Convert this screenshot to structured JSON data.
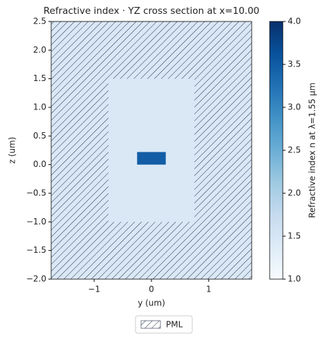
{
  "chart_data": {
    "type": "heatmap",
    "title": "Refractive index · YZ cross section at x=10.00",
    "xlabel": "y (um)",
    "ylabel": "z (um)",
    "xlim": [
      -1.75,
      1.75
    ],
    "ylim": [
      -2.0,
      2.5
    ],
    "xticks": [
      {
        "value": -1,
        "label": "−1"
      },
      0,
      1
    ],
    "yticks": [
      {
        "value": -2.0,
        "label": "−2.0"
      },
      {
        "value": -1.5,
        "label": "−1.5"
      },
      {
        "value": -1.0,
        "label": "−1.0"
      },
      {
        "value": -0.5,
        "label": "−0.5"
      },
      {
        "value": 0.0,
        "label": "0.0"
      },
      {
        "value": 0.5,
        "label": "0.5"
      },
      {
        "value": 1.0,
        "label": "1.0"
      },
      {
        "value": 1.5,
        "label": "1.5"
      },
      {
        "value": 2.0,
        "label": "2.0"
      },
      {
        "value": 2.5,
        "label": "2.5"
      }
    ],
    "background_value": 1.44,
    "rectangles": [
      {
        "x": [
          -0.75,
          0.75
        ],
        "y": [
          -1.0,
          1.5
        ],
        "value": 1.44
      },
      {
        "x": [
          -0.25,
          0.25
        ],
        "y": [
          0.0,
          0.22
        ],
        "value": 3.48
      }
    ],
    "pml_hatch": true,
    "legend": {
      "labels": [
        "PML"
      ],
      "loc": "lower center"
    },
    "colormap": "Blues",
    "colorbar": {
      "label": "Refractive index n at λ=1.55 μm",
      "lim": [
        1.0,
        4.0
      ],
      "ticks": [
        {
          "value": 1.0,
          "label": "1.0"
        },
        {
          "value": 1.5,
          "label": "1.5"
        },
        {
          "value": 2.0,
          "label": "2.0"
        },
        {
          "value": 2.5,
          "label": "2.5"
        },
        {
          "value": 3.0,
          "label": "3.0"
        },
        {
          "value": 3.5,
          "label": "3.5"
        },
        {
          "value": 4.0,
          "label": "4.0"
        }
      ]
    }
  }
}
